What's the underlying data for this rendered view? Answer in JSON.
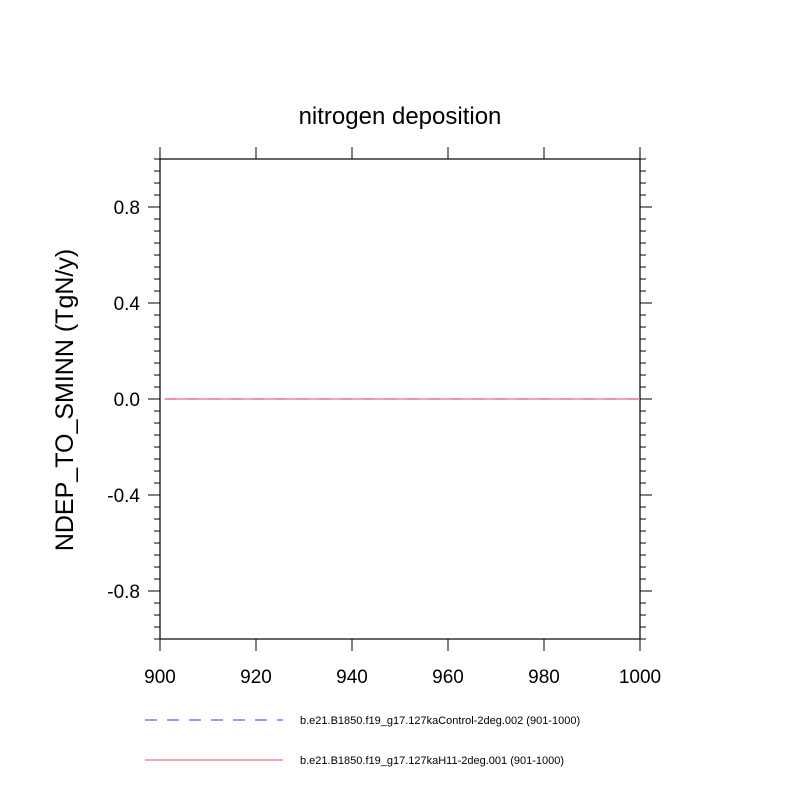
{
  "chart_data": {
    "type": "line",
    "title": "nitrogen deposition",
    "xlabel": "",
    "ylabel": "NDEP_TO_SMINN  (TgN/y)",
    "xlim": [
      900,
      1000
    ],
    "ylim": [
      -1,
      1
    ],
    "x_ticks": [
      900,
      920,
      940,
      960,
      980,
      1000
    ],
    "x_tick_labels": [
      "900",
      "920",
      "940",
      "960",
      "980",
      "1000"
    ],
    "y_ticks": [
      -0.8,
      -0.4,
      0.0,
      0.4,
      0.8
    ],
    "y_tick_labels": [
      "-0.8",
      "-0.4",
      "0.0",
      "0.4",
      "0.8"
    ],
    "grid": false,
    "legend_position": "bottom",
    "series": [
      {
        "name": "b.e21.B1850.f19_g17.127kaControl-2deg.002 (901-1000)",
        "color": "#5a5aff",
        "style": "dashed",
        "x": [
          901,
          1000
        ],
        "y": [
          0,
          0
        ]
      },
      {
        "name": "b.e21.B1850.f19_g17.127kaH11-2deg.001 (901-1000)",
        "color": "#ff6b7f",
        "style": "solid",
        "x": [
          901,
          1000
        ],
        "y": [
          0,
          0
        ]
      }
    ]
  }
}
